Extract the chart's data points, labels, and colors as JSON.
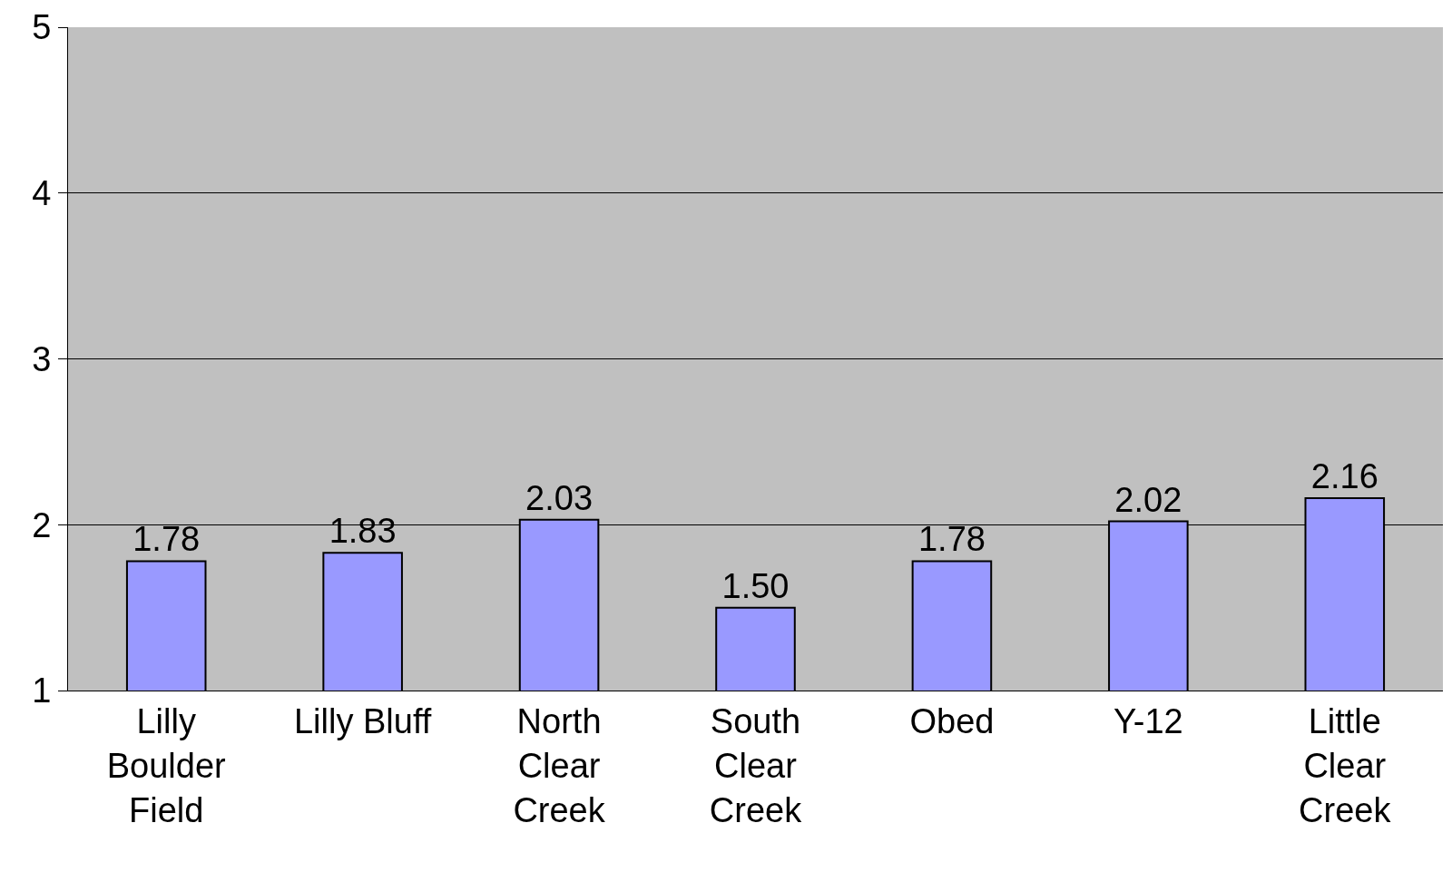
{
  "chart_data": {
    "type": "bar",
    "categories": [
      "Lilly\nBoulder\nField",
      "Lilly Bluff",
      "North\nClear\nCreek",
      "South\nClear\nCreek",
      "Obed",
      "Y-12",
      "Little\nClear\nCreek"
    ],
    "values": [
      1.78,
      1.83,
      2.03,
      1.5,
      1.78,
      2.02,
      2.16
    ],
    "value_labels": [
      "1.78",
      "1.83",
      "2.03",
      "1.50",
      "1.78",
      "2.02",
      "2.16"
    ],
    "color": "#9999ff",
    "ylim": [
      1,
      5
    ],
    "yticks": [
      1,
      2,
      3,
      4,
      5
    ],
    "grid": "y",
    "legend": false
  }
}
